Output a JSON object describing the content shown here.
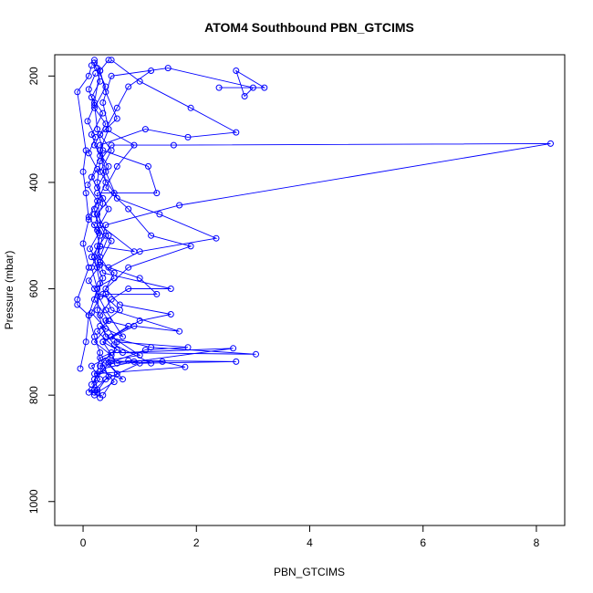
{
  "chart_data": {
    "type": "scatter",
    "title": "ATOM4 Southbound PBN_GTCIMS",
    "xlabel": "PBN_GTCIMS",
    "ylabel": "Pressure (mbar)",
    "xlim": [
      -0.5,
      8.5
    ],
    "ylim": [
      1045,
      160
    ],
    "y_reversed": true,
    "x_ticks": [
      0,
      2,
      4,
      6,
      8
    ],
    "y_ticks": [
      200,
      400,
      600,
      800,
      1000
    ],
    "x_tick_labels": [
      "0",
      "2",
      "4",
      "6",
      "8"
    ],
    "y_tick_labels": [
      "200",
      "400",
      "600",
      "800",
      "1000"
    ],
    "grid": false,
    "point_style": "open-circle",
    "color": "#0000ff",
    "series": [
      {
        "points": [
          [
            0.2,
            795
          ],
          [
            0.15,
            790
          ],
          [
            0.25,
            760
          ],
          [
            0.3,
            720
          ],
          [
            0.2,
            690
          ],
          [
            0.1,
            650
          ],
          [
            0.25,
            600
          ],
          [
            0.15,
            560
          ],
          [
            0.3,
            520
          ],
          [
            0.2,
            480
          ],
          [
            0.35,
            440
          ],
          [
            0.25,
            400
          ],
          [
            0.3,
            360
          ],
          [
            0.5,
            330
          ],
          [
            1.6,
            330
          ],
          [
            8.25,
            327
          ],
          [
            1.7,
            443
          ],
          [
            0.4,
            480
          ],
          [
            0.3,
            520
          ],
          [
            0.25,
            560
          ]
        ]
      },
      {
        "points": [
          [
            0.2,
            800
          ],
          [
            0.4,
            770
          ],
          [
            1.0,
            740
          ],
          [
            2.7,
            737
          ],
          [
            0.8,
            735
          ],
          [
            0.3,
            745
          ],
          [
            0.5,
            720
          ],
          [
            3.05,
            723
          ],
          [
            1.2,
            710
          ],
          [
            0.4,
            690
          ],
          [
            0.25,
            640
          ],
          [
            0.3,
            590
          ],
          [
            0.2,
            540
          ],
          [
            0.3,
            500
          ],
          [
            0.2,
            450
          ],
          [
            0.4,
            400
          ],
          [
            0.3,
            340
          ],
          [
            0.45,
            300
          ],
          [
            0.35,
            250
          ],
          [
            0.5,
            200
          ],
          [
            1.5,
            185
          ],
          [
            3.0,
            222
          ],
          [
            2.85,
            238
          ],
          [
            2.7,
            190
          ],
          [
            3.2,
            222
          ],
          [
            2.4,
            222
          ]
        ]
      },
      {
        "points": [
          [
            0.25,
            790
          ],
          [
            0.2,
            760
          ],
          [
            1.8,
            747
          ],
          [
            1.4,
            737
          ],
          [
            0.6,
            740
          ],
          [
            0.35,
            700
          ],
          [
            0.9,
            670
          ],
          [
            1.7,
            680
          ],
          [
            0.5,
            640
          ],
          [
            0.4,
            610
          ],
          [
            1.3,
            610
          ],
          [
            1.0,
            580
          ],
          [
            0.45,
            560
          ],
          [
            1.0,
            530
          ],
          [
            2.35,
            505
          ],
          [
            1.35,
            460
          ],
          [
            0.6,
            430
          ],
          [
            0.4,
            380
          ],
          [
            0.3,
            330
          ],
          [
            1.1,
            300
          ],
          [
            1.85,
            315
          ],
          [
            2.7,
            306
          ],
          [
            1.9,
            260
          ],
          [
            1.0,
            210
          ],
          [
            0.5,
            170
          ]
        ]
      },
      {
        "points": [
          [
            0.15,
            780
          ],
          [
            0.3,
            755
          ],
          [
            0.7,
            770
          ],
          [
            0.45,
            740
          ],
          [
            1.1,
            715
          ],
          [
            1.85,
            710
          ],
          [
            0.6,
            700
          ],
          [
            0.3,
            650
          ],
          [
            0.5,
            620
          ],
          [
            0.8,
            600
          ],
          [
            1.55,
            600
          ],
          [
            0.35,
            570
          ],
          [
            0.25,
            520
          ],
          [
            0.9,
            530
          ],
          [
            0.3,
            480
          ],
          [
            0.25,
            420
          ],
          [
            1.3,
            420
          ],
          [
            1.15,
            370
          ],
          [
            0.35,
            340
          ],
          [
            0.25,
            300
          ],
          [
            0.2,
            250
          ],
          [
            0.3,
            190
          ],
          [
            0.2,
            170
          ]
        ]
      },
      {
        "points": [
          [
            -0.05,
            750
          ],
          [
            0.05,
            700
          ],
          [
            0.1,
            650
          ],
          [
            -0.1,
            630
          ],
          [
            -0.1,
            620
          ],
          [
            0.1,
            560
          ],
          [
            0.0,
            515
          ],
          [
            0.1,
            470
          ],
          [
            0.05,
            420
          ],
          [
            0.0,
            380
          ],
          [
            0.05,
            340
          ],
          [
            -0.1,
            230
          ],
          [
            0.1,
            200
          ],
          [
            0.15,
            180
          ]
        ]
      },
      {
        "points": [
          [
            0.25,
            795
          ],
          [
            0.55,
            775
          ],
          [
            0.35,
            750
          ],
          [
            0.9,
            737
          ],
          [
            2.65,
            712
          ],
          [
            0.7,
            720
          ],
          [
            0.35,
            700
          ],
          [
            1.0,
            660
          ],
          [
            1.55,
            648
          ],
          [
            0.65,
            630
          ],
          [
            0.4,
            600
          ],
          [
            0.8,
            560
          ],
          [
            1.9,
            520
          ],
          [
            1.2,
            500
          ],
          [
            0.8,
            450
          ],
          [
            0.4,
            410
          ],
          [
            0.6,
            370
          ],
          [
            0.9,
            330
          ],
          [
            0.4,
            300
          ],
          [
            0.6,
            260
          ],
          [
            0.8,
            220
          ],
          [
            1.2,
            190
          ]
        ]
      },
      {
        "points": [
          [
            0.3,
            805
          ],
          [
            0.2,
            770
          ],
          [
            0.5,
            735
          ],
          [
            1.2,
            740
          ],
          [
            0.55,
            705
          ],
          [
            0.3,
            670
          ],
          [
            0.7,
            690
          ],
          [
            0.4,
            640
          ],
          [
            0.2,
            600
          ],
          [
            0.55,
            580
          ],
          [
            0.3,
            540
          ],
          [
            0.45,
            500
          ],
          [
            0.25,
            460
          ],
          [
            0.55,
            420
          ],
          [
            0.3,
            380
          ],
          [
            0.5,
            340
          ],
          [
            0.3,
            310
          ],
          [
            0.6,
            280
          ],
          [
            0.4,
            230
          ],
          [
            0.3,
            190
          ],
          [
            0.45,
            170
          ]
        ]
      },
      {
        "points": [
          [
            0.2,
            790
          ],
          [
            0.45,
            765
          ],
          [
            0.3,
            730
          ],
          [
            0.6,
            715
          ],
          [
            0.25,
            680
          ],
          [
            0.45,
            660
          ],
          [
            0.2,
            620
          ],
          [
            0.35,
            580
          ],
          [
            0.15,
            540
          ],
          [
            0.4,
            500
          ],
          [
            0.2,
            460
          ],
          [
            0.35,
            430
          ],
          [
            0.15,
            390
          ],
          [
            0.3,
            350
          ],
          [
            0.15,
            310
          ],
          [
            0.35,
            270
          ],
          [
            0.15,
            240
          ],
          [
            0.3,
            210
          ],
          [
            0.2,
            175
          ]
        ]
      },
      {
        "points": [
          [
            0.35,
            800
          ],
          [
            0.6,
            760
          ],
          [
            0.4,
            735
          ],
          [
            1.0,
            725
          ],
          [
            0.5,
            690
          ],
          [
            0.8,
            670
          ],
          [
            0.4,
            660
          ],
          [
            0.65,
            640
          ],
          [
            0.35,
            610
          ],
          [
            0.55,
            570
          ],
          [
            0.3,
            550
          ],
          [
            0.5,
            510
          ],
          [
            0.25,
            490
          ],
          [
            0.45,
            450
          ],
          [
            0.25,
            410
          ],
          [
            0.45,
            370
          ],
          [
            0.2,
            330
          ],
          [
            0.4,
            290
          ],
          [
            0.2,
            260
          ],
          [
            0.4,
            220
          ],
          [
            0.25,
            185
          ]
        ]
      },
      {
        "points": [
          [
            0.1,
            795
          ],
          [
            0.3,
            770
          ],
          [
            0.15,
            745
          ],
          [
            0.5,
            725
          ],
          [
            0.2,
            700
          ],
          [
            0.4,
            675
          ],
          [
            0.15,
            645
          ],
          [
            0.3,
            615
          ],
          [
            0.1,
            585
          ],
          [
            0.3,
            555
          ],
          [
            0.12,
            525
          ],
          [
            0.28,
            495
          ],
          [
            0.1,
            465
          ],
          [
            0.25,
            435
          ],
          [
            0.08,
            405
          ],
          [
            0.25,
            375
          ],
          [
            0.1,
            345
          ],
          [
            0.22,
            315
          ],
          [
            0.08,
            285
          ],
          [
            0.2,
            255
          ],
          [
            0.1,
            225
          ],
          [
            0.22,
            195
          ]
        ]
      }
    ]
  }
}
